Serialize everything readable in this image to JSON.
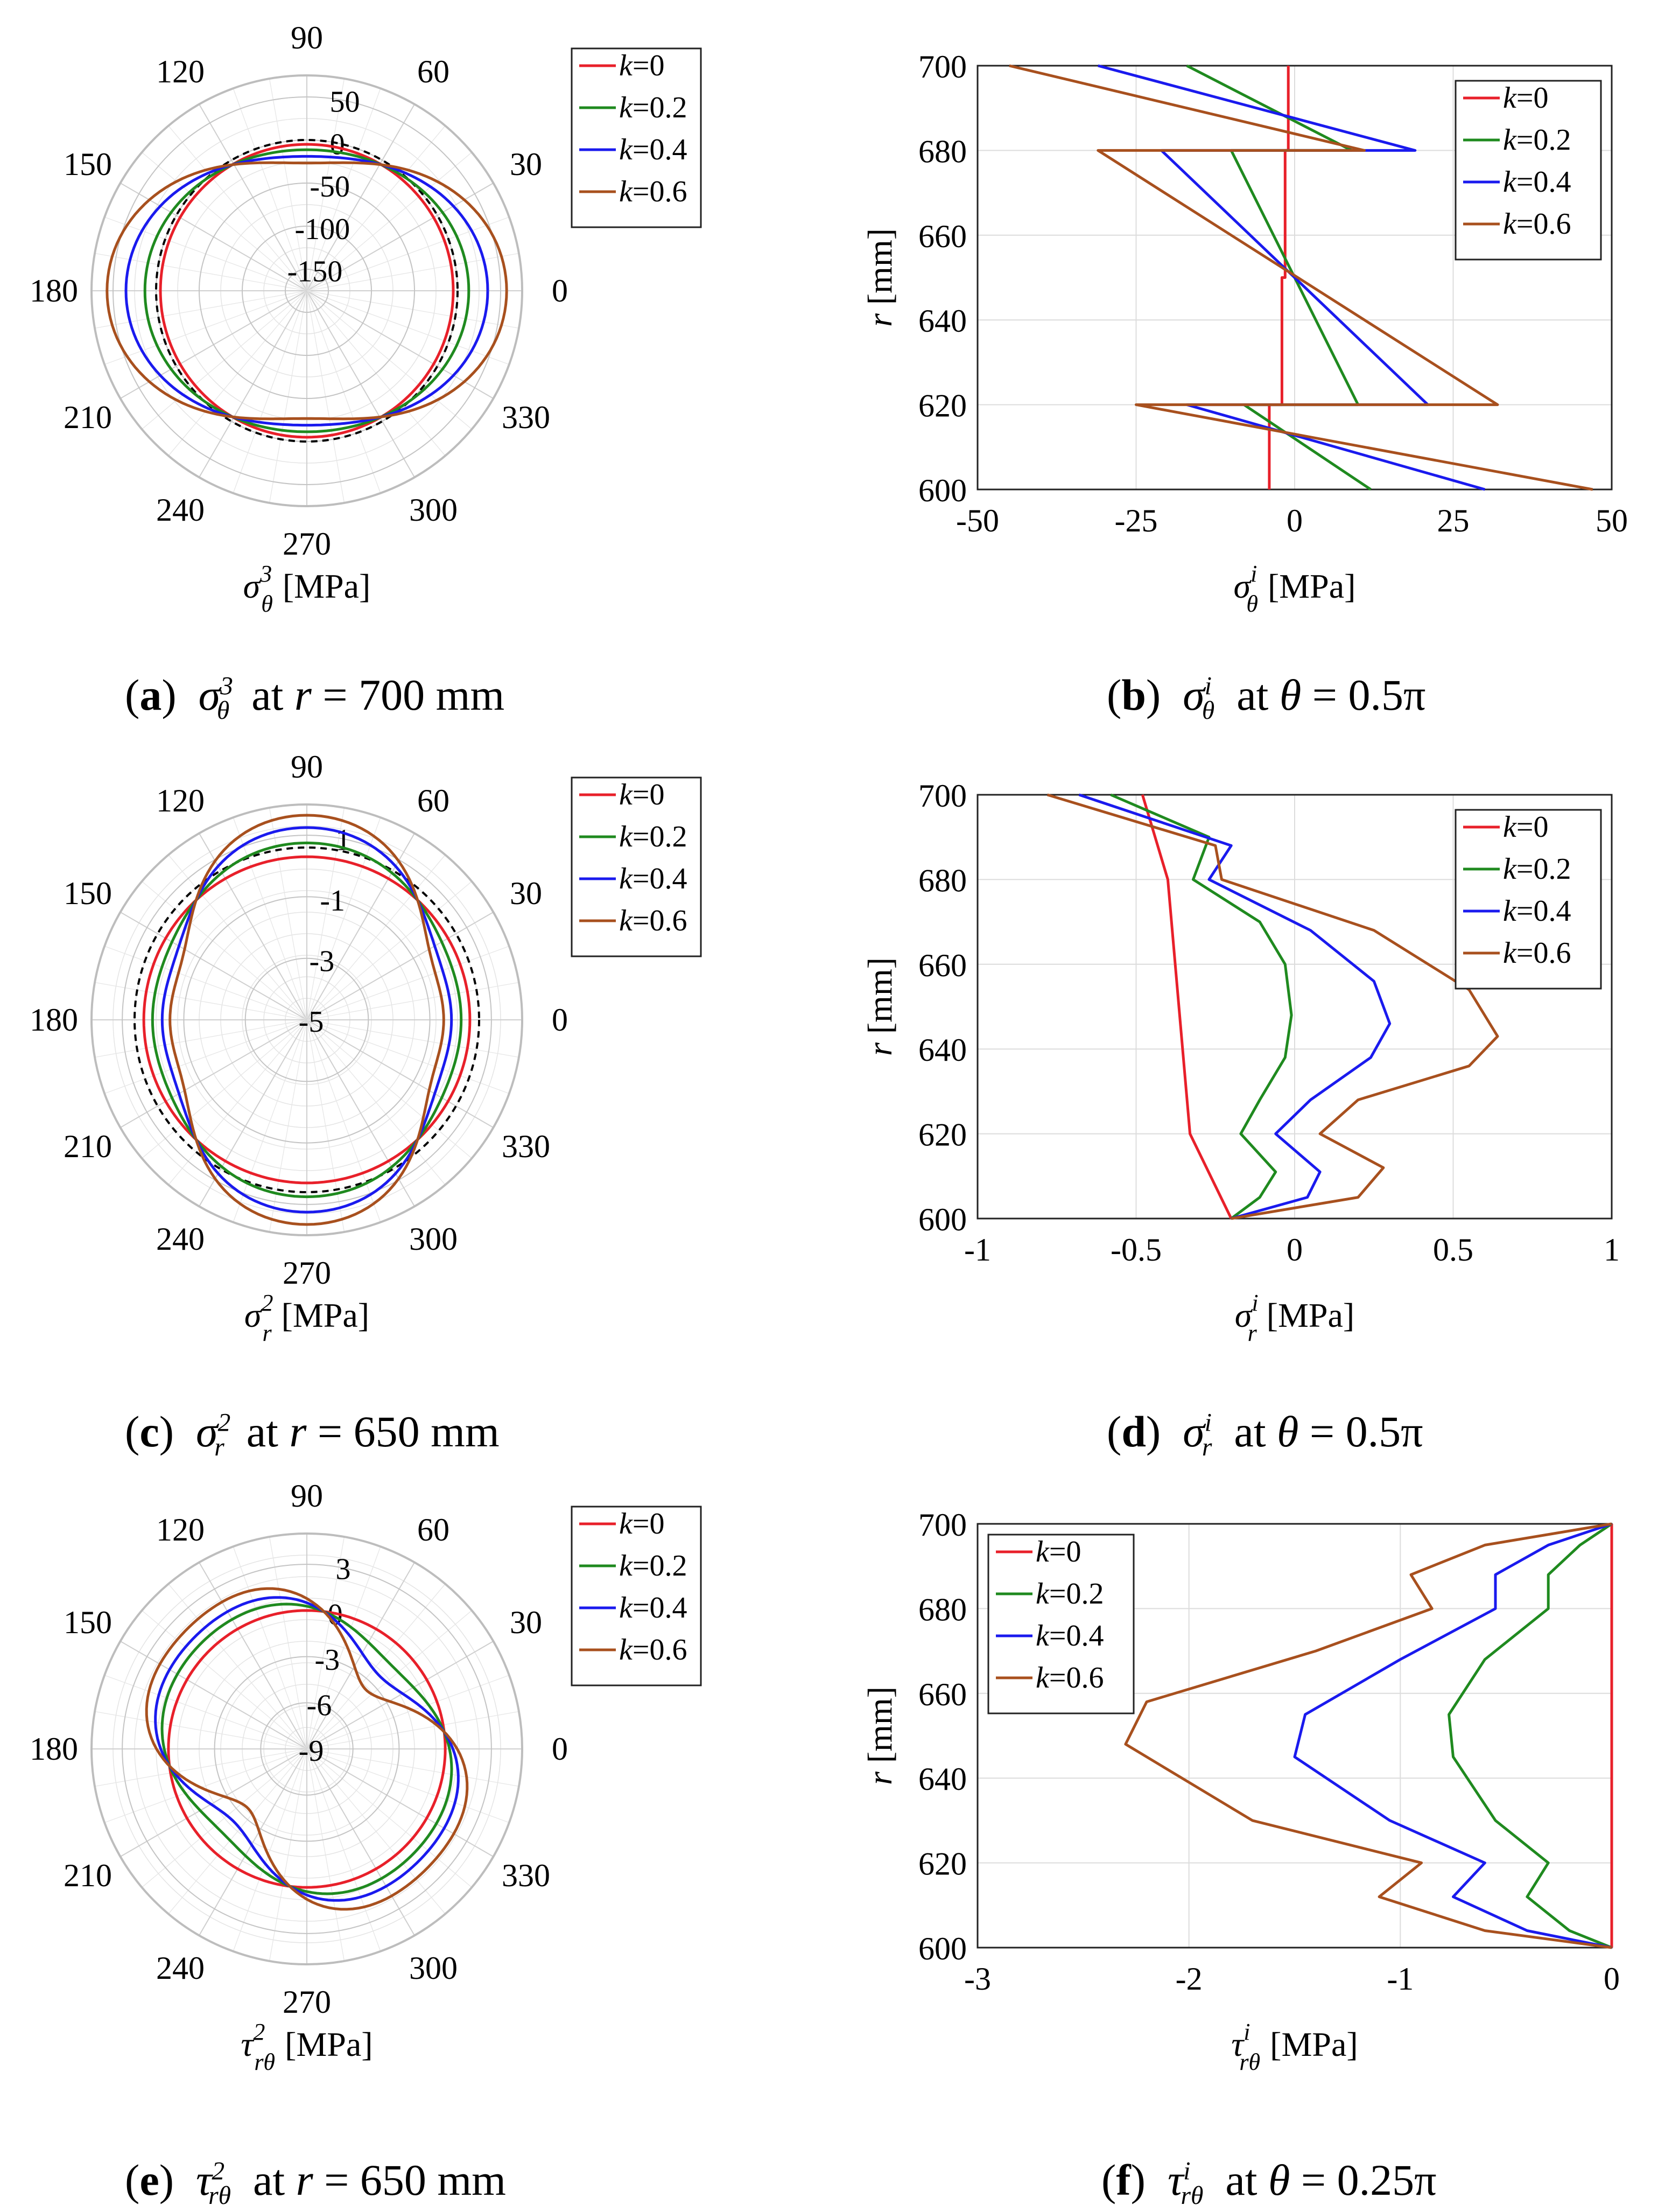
{
  "colors": {
    "k0": "#e8202a",
    "k02": "#1f8a1f",
    "k04": "#1a1aee",
    "k06": "#a8501e",
    "ref": "#000000",
    "grid": "#c8c8c8",
    "axis": "#222222"
  },
  "panels": [
    {
      "id": "a",
      "caption": {
        "letter": "a",
        "symbol": "σ",
        "sub": "θ",
        "sup": "3",
        "at_text": "at",
        "var": "r",
        "eq": "= 700 mm"
      },
      "axis_label": {
        "symbol": "σ",
        "sub": "θ",
        "sup": "3",
        "unit": "[MPa]"
      }
    },
    {
      "id": "b",
      "caption": {
        "letter": "b",
        "symbol": "σ",
        "sub": "θ",
        "sup": "i",
        "at_text": "at",
        "var": "θ",
        "eq": "= 0.5π"
      },
      "axis_label": {
        "symbol": "σ",
        "sub": "θ",
        "sup": "i",
        "unit": "[MPa]"
      }
    },
    {
      "id": "c",
      "caption": {
        "letter": "c",
        "symbol": "σ",
        "sub": "r",
        "sup": "2",
        "at_text": "at",
        "var": "r",
        "eq": "= 650 mm"
      },
      "axis_label": {
        "symbol": "σ",
        "sub": "r",
        "sup": "2",
        "unit": "[MPa]"
      }
    },
    {
      "id": "d",
      "caption": {
        "letter": "d",
        "symbol": "σ",
        "sub": "r",
        "sup": "i",
        "at_text": "at",
        "var": "θ",
        "eq": "= 0.5π"
      },
      "axis_label": {
        "symbol": "σ",
        "sub": "r",
        "sup": "i",
        "unit": "[MPa]"
      }
    },
    {
      "id": "e",
      "caption": {
        "letter": "e",
        "symbol": "τ",
        "sub": "rθ",
        "sup": "2",
        "at_text": "at",
        "var": "r",
        "eq": "= 650 mm"
      },
      "axis_label": {
        "symbol": "τ",
        "sub": "rθ",
        "sup": "2",
        "unit": "[MPa]"
      }
    },
    {
      "id": "f",
      "caption": {
        "letter": "f",
        "symbol": "τ",
        "sub": "rθ",
        "sup": "i",
        "at_text": "at",
        "var": "θ",
        "eq": "= 0.25π"
      },
      "axis_label": {
        "symbol": "τ",
        "sub": "rθ",
        "sup": "i",
        "unit": "[MPa]"
      }
    }
  ],
  "chart_data": [
    {
      "id": "a",
      "type": "polar",
      "title": "σθ3 at r = 700 mm",
      "angle_ticks": [
        0,
        30,
        60,
        90,
        120,
        150,
        180,
        210,
        240,
        270,
        300,
        330
      ],
      "radial_ticks": [
        -150,
        -100,
        -50,
        0,
        50
      ],
      "radial_tick_labels": [
        "-150",
        "-100",
        "-50",
        "0",
        "50"
      ],
      "rlim": [
        -175,
        75
      ],
      "legend": [
        "k=0",
        "k=0.2",
        "k=0.4",
        "k=0.6"
      ],
      "legend_position": "top-right",
      "reference_dashed_value": 0,
      "series": [
        {
          "name": "k=0",
          "base": -5,
          "amp": 0,
          "shape": "cos2",
          "sign": -1
        },
        {
          "name": "k=0.2",
          "base": -5,
          "amp": 18,
          "shape": "cos2",
          "sign": -1
        },
        {
          "name": "k=0.4",
          "base": -5,
          "amp": 40,
          "shape": "cos2",
          "sign": -1
        },
        {
          "name": "k=0.6",
          "base": -5,
          "amp": 62,
          "shape": "cos2",
          "sign": -1
        }
      ]
    },
    {
      "id": "b",
      "type": "line",
      "title": "σθi at θ = 0.5π",
      "xlabel": "σθi [MPa]",
      "ylabel": "r [mm]",
      "xlim": [
        -50,
        50
      ],
      "ylim": [
        600,
        700
      ],
      "xticks": [
        -50,
        -25,
        0,
        25,
        50
      ],
      "yticks": [
        600,
        620,
        640,
        660,
        680,
        700
      ],
      "legend": [
        "k=0",
        "k=0.2",
        "k=0.4",
        "k=0.6"
      ],
      "legend_position": "top-right",
      "series": [
        {
          "name": "k=0",
          "x": [
            -4,
            -4,
            -2,
            -2,
            -1.5,
            -1.5,
            -1,
            -1
          ],
          "y": [
            600,
            620,
            620,
            650,
            650,
            680,
            680,
            700
          ]
        },
        {
          "name": "k=0.2",
          "x": [
            12,
            -8,
            10,
            -10,
            9,
            -17
          ],
          "y": [
            600,
            620,
            620,
            680,
            680,
            700
          ]
        },
        {
          "name": "k=0.4",
          "x": [
            30,
            -17,
            21,
            -21,
            19,
            -31
          ],
          "y": [
            600,
            620,
            620,
            680,
            680,
            700
          ]
        },
        {
          "name": "k=0.6",
          "x": [
            47,
            -25,
            32,
            -31,
            11,
            -45
          ],
          "y": [
            600,
            620,
            620,
            680,
            680,
            700
          ]
        }
      ]
    },
    {
      "id": "c",
      "type": "polar",
      "title": "σr2 at r = 650 mm",
      "angle_ticks": [
        0,
        30,
        60,
        90,
        120,
        150,
        180,
        210,
        240,
        270,
        300,
        330
      ],
      "radial_ticks": [
        -5,
        -3,
        -1,
        1
      ],
      "radial_tick_labels": [
        "-5",
        "-3",
        "-1",
        "1"
      ],
      "rlim": [
        -5,
        2
      ],
      "legend": [
        "k=0",
        "k=0.2",
        "k=0.4",
        "k=0.6"
      ],
      "legend_position": "top-right",
      "reference_dashed_value": 0.6,
      "series": [
        {
          "name": "k=0",
          "base": 0.3,
          "amp": 0,
          "shape": "sq",
          "sign": 1
        },
        {
          "name": "k=0.2",
          "base": 0.3,
          "amp": 0.45,
          "shape": "sq",
          "sign": 1
        },
        {
          "name": "k=0.4",
          "base": 0.3,
          "amp": 0.95,
          "shape": "sq",
          "sign": 1
        },
        {
          "name": "k=0.6",
          "base": 0.3,
          "amp": 1.35,
          "shape": "sq",
          "sign": 1
        }
      ]
    },
    {
      "id": "d",
      "type": "line",
      "title": "σri at θ = 0.5π",
      "xlabel": "σri [MPa]",
      "ylabel": "r [mm]",
      "xlim": [
        -1,
        1
      ],
      "ylim": [
        600,
        700
      ],
      "xticks": [
        -1,
        -0.5,
        0,
        0.5,
        1
      ],
      "yticks": [
        600,
        620,
        640,
        660,
        680,
        700
      ],
      "xtick_labels": [
        "-1",
        "-0.5",
        "0",
        "0.5",
        "1"
      ],
      "legend": [
        "k=0",
        "k=0.2",
        "k=0.4",
        "k=0.6"
      ],
      "legend_position": "top-right",
      "series": [
        {
          "name": "k=0",
          "x": [
            -0.2,
            -0.33,
            -0.4,
            -0.48
          ],
          "y": [
            600,
            620,
            680,
            700
          ]
        },
        {
          "name": "k=0.2",
          "x": [
            -0.2,
            -0.11,
            -0.06,
            -0.17,
            -0.11,
            -0.03,
            -0.01,
            -0.03,
            -0.11,
            -0.32,
            -0.27,
            -0.58
          ],
          "y": [
            600,
            605,
            611,
            620,
            628,
            638,
            648,
            660,
            670,
            680,
            690,
            700
          ]
        },
        {
          "name": "k=0.4",
          "x": [
            -0.2,
            0.04,
            0.08,
            -0.06,
            0.05,
            0.24,
            0.3,
            0.25,
            0.05,
            -0.27,
            -0.2,
            -0.68
          ],
          "y": [
            600,
            605,
            611,
            620,
            628,
            638,
            646,
            656,
            668,
            680,
            688,
            700
          ]
        },
        {
          "name": "k=0.6",
          "x": [
            -0.2,
            0.2,
            0.28,
            0.08,
            0.2,
            0.55,
            0.64,
            0.55,
            0.25,
            -0.23,
            -0.25,
            -0.78
          ],
          "y": [
            600,
            605,
            612,
            620,
            628,
            636,
            643,
            654,
            668,
            680,
            688,
            700
          ]
        }
      ]
    },
    {
      "id": "e",
      "type": "polar",
      "title": "τrθ2 at r = 650 mm",
      "angle_ticks": [
        0,
        30,
        60,
        90,
        120,
        150,
        180,
        210,
        240,
        270,
        300,
        330
      ],
      "radial_ticks": [
        -9,
        -6,
        -3,
        0,
        3
      ],
      "radial_tick_labels": [
        "-9",
        "-6",
        "-3",
        "0",
        "3"
      ],
      "rlim": [
        -9,
        5
      ],
      "legend": [
        "k=0",
        "k=0.2",
        "k=0.4",
        "k=0.6"
      ],
      "legend_position": "top-right",
      "reference_dashed_value": 0,
      "series": [
        {
          "name": "k=0",
          "base": 0,
          "amp": 0,
          "shape": "sin2",
          "sign": 1
        },
        {
          "name": "k=0.2",
          "base": 0,
          "amp": 1.1,
          "shape": "sin2",
          "sign": 1
        },
        {
          "name": "k=0.4",
          "base": 0,
          "amp": 2.0,
          "shape": "sin2",
          "sign": 1
        },
        {
          "name": "k=0.6",
          "base": 0,
          "amp": 3.1,
          "shape": "sin2",
          "sign": 1
        }
      ]
    },
    {
      "id": "f",
      "type": "line",
      "title": "τrθi at θ = 0.25π",
      "xlabel": "τrθi [MPa]",
      "ylabel": "r [mm]",
      "xlim": [
        -3,
        0
      ],
      "ylim": [
        600,
        700
      ],
      "xticks": [
        -3,
        -2,
        -1,
        0
      ],
      "yticks": [
        600,
        620,
        640,
        660,
        680,
        700
      ],
      "legend": [
        "k=0",
        "k=0.2",
        "k=0.4",
        "k=0.6"
      ],
      "legend_position": "top-left",
      "series": [
        {
          "name": "k=0",
          "x": [
            0,
            0
          ],
          "y": [
            600,
            700
          ]
        },
        {
          "name": "k=0.2",
          "x": [
            0,
            -0.2,
            -0.4,
            -0.3,
            -0.55,
            -0.75,
            -0.77,
            -0.6,
            -0.3,
            -0.3,
            -0.15,
            0
          ],
          "y": [
            600,
            604,
            612,
            620,
            630,
            645,
            655,
            668,
            680,
            688,
            695,
            700
          ]
        },
        {
          "name": "k=0.4",
          "x": [
            0,
            -0.4,
            -0.75,
            -0.6,
            -1.05,
            -1.5,
            -1.45,
            -1.0,
            -0.55,
            -0.55,
            -0.3,
            0
          ],
          "y": [
            600,
            604,
            612,
            620,
            630,
            645,
            655,
            668,
            680,
            688,
            695,
            700
          ]
        },
        {
          "name": "k=0.6",
          "x": [
            0,
            -0.6,
            -1.1,
            -0.9,
            -1.7,
            -2.3,
            -2.2,
            -1.4,
            -0.85,
            -0.95,
            -0.6,
            0
          ],
          "y": [
            600,
            604,
            612,
            620,
            630,
            648,
            658,
            670,
            680,
            688,
            695,
            700
          ]
        }
      ]
    }
  ]
}
